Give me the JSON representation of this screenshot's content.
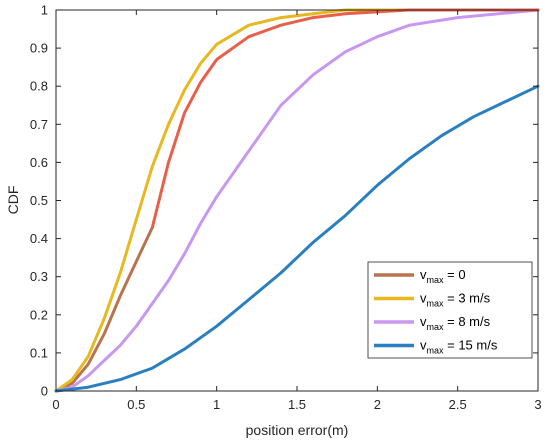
{
  "chart_data": {
    "type": "line",
    "title": "",
    "xlabel": "position error(m)",
    "ylabel": "CDF",
    "xlim": [
      0,
      3
    ],
    "ylim": [
      0,
      1
    ],
    "xticks": [
      "0",
      "0.5",
      "1",
      "1.5",
      "2",
      "2.5",
      "3"
    ],
    "yticks": [
      "0",
      "0.1",
      "0.2",
      "0.3",
      "0.4",
      "0.5",
      "0.6",
      "0.7",
      "0.8",
      "0.9",
      "1"
    ],
    "grid": false,
    "legend_position": "lower-right",
    "series": [
      {
        "name": "v_max = 0",
        "legend_base": "v",
        "legend_sub": "max",
        "legend_rest": " = 0",
        "color": "#b8734f",
        "x": [
          0.0,
          0.1,
          0.2,
          0.3,
          0.4,
          0.5,
          0.6
        ],
        "y": [
          0.0,
          0.02,
          0.07,
          0.15,
          0.25,
          0.34,
          0.43
        ]
      },
      {
        "name": "v_max = 3 m/s",
        "legend_base": "v",
        "legend_sub": "max",
        "legend_rest": " = 3 m/s",
        "color": "#e8b820",
        "x": [
          0.0,
          0.1,
          0.2,
          0.3,
          0.4,
          0.5,
          0.6,
          0.7,
          0.8,
          0.9,
          1.0,
          1.2,
          1.4,
          1.6,
          1.8,
          2.0,
          2.5,
          3.0
        ],
        "y": [
          0.0,
          0.03,
          0.09,
          0.19,
          0.31,
          0.45,
          0.59,
          0.7,
          0.79,
          0.86,
          0.91,
          0.96,
          0.98,
          0.99,
          1.0,
          1.0,
          1.0,
          1.0
        ]
      },
      {
        "name": "v_max = 8 m/s",
        "legend_base": "v",
        "legend_sub": "max",
        "legend_rest": " = 8 m/s",
        "color": "#c897f0",
        "x": [
          0.0,
          0.1,
          0.2,
          0.3,
          0.4,
          0.5,
          0.6,
          0.7,
          0.8,
          0.9,
          1.0,
          1.2,
          1.4,
          1.6,
          1.8,
          2.0,
          2.2,
          2.5,
          3.0
        ],
        "y": [
          0.0,
          0.01,
          0.04,
          0.08,
          0.12,
          0.17,
          0.23,
          0.29,
          0.36,
          0.44,
          0.51,
          0.63,
          0.75,
          0.83,
          0.89,
          0.93,
          0.96,
          0.98,
          1.0
        ]
      },
      {
        "name": "v_max = 15 m/s",
        "legend_base": "v",
        "legend_sub": "max",
        "legend_rest": " = 15 m/s",
        "color": "#2a7fc0",
        "x": [
          0.0,
          0.2,
          0.4,
          0.6,
          0.8,
          1.0,
          1.2,
          1.4,
          1.6,
          1.8,
          2.0,
          2.2,
          2.4,
          2.6,
          2.8,
          3.0
        ],
        "y": [
          0.0,
          0.01,
          0.03,
          0.06,
          0.11,
          0.17,
          0.24,
          0.31,
          0.39,
          0.46,
          0.54,
          0.61,
          0.67,
          0.72,
          0.76,
          0.8
        ]
      },
      {
        "name": "v_max = 0 (high-error tail)",
        "legend": false,
        "color": "#e8604a",
        "x": [
          0.6,
          0.7,
          0.8,
          0.9,
          1.0,
          1.2,
          1.4,
          1.6,
          1.8,
          2.0,
          2.2,
          2.5,
          3.0
        ],
        "y": [
          0.43,
          0.6,
          0.73,
          0.81,
          0.87,
          0.93,
          0.96,
          0.98,
          0.99,
          0.995,
          1.0,
          1.0,
          1.0
        ]
      }
    ]
  }
}
